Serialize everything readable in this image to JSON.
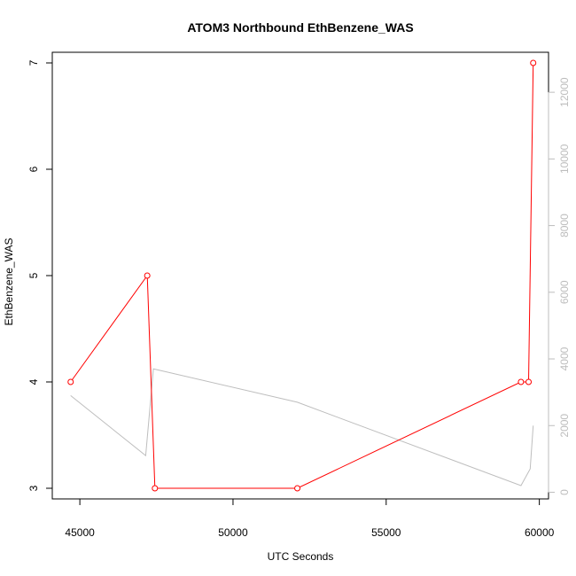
{
  "chart_data": {
    "type": "line",
    "title": "ATOM3 Northbound EthBenzene_WAS",
    "xlabel": "UTC Seconds",
    "ylabel": "EthBenzene_WAS",
    "xlim": [
      44100,
      60300
    ],
    "ylim": [
      2.9,
      7.1
    ],
    "y2lim": [
      -200,
      13200
    ],
    "x_ticks": [
      45000,
      50000,
      55000,
      60000
    ],
    "y_ticks": [
      3,
      4,
      5,
      6,
      7
    ],
    "y2_ticks": [
      0,
      2000,
      4000,
      6000,
      8000,
      10000,
      12000
    ],
    "grid": false,
    "series": [
      {
        "axis": "left",
        "color": "#ff0000",
        "marker": "open-circle",
        "x": [
          44700,
          47200,
          47450,
          52100,
          59400,
          59650,
          59800
        ],
        "y": [
          4,
          5,
          3,
          3,
          4,
          4,
          7
        ]
      },
      {
        "axis": "right",
        "color": "#bebebe",
        "marker": "none",
        "x": [
          44700,
          47150,
          47400,
          52100,
          59400,
          59700,
          59800
        ],
        "y": [
          2900,
          1100,
          3700,
          2700,
          200,
          700,
          2000
        ]
      }
    ]
  }
}
